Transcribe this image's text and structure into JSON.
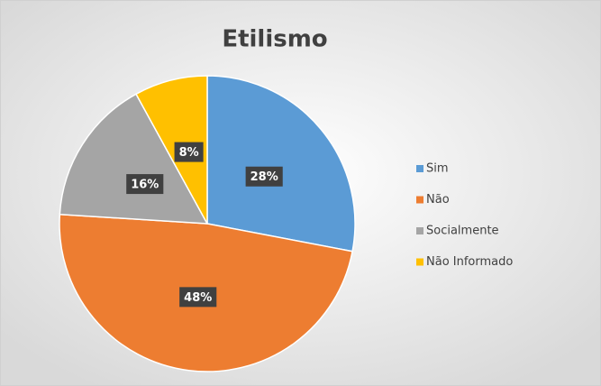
{
  "chart_data": {
    "type": "pie",
    "title": "Etilismo",
    "categories": [
      "Sim",
      "Não",
      "Socialmente",
      "Não Informado"
    ],
    "values": [
      28,
      48,
      16,
      8
    ],
    "value_labels": [
      "28%",
      "48%",
      "16%",
      "8%"
    ],
    "colors": [
      "#5b9bd5",
      "#ed7d31",
      "#a5a5a5",
      "#ffc000"
    ],
    "legend": "right"
  }
}
